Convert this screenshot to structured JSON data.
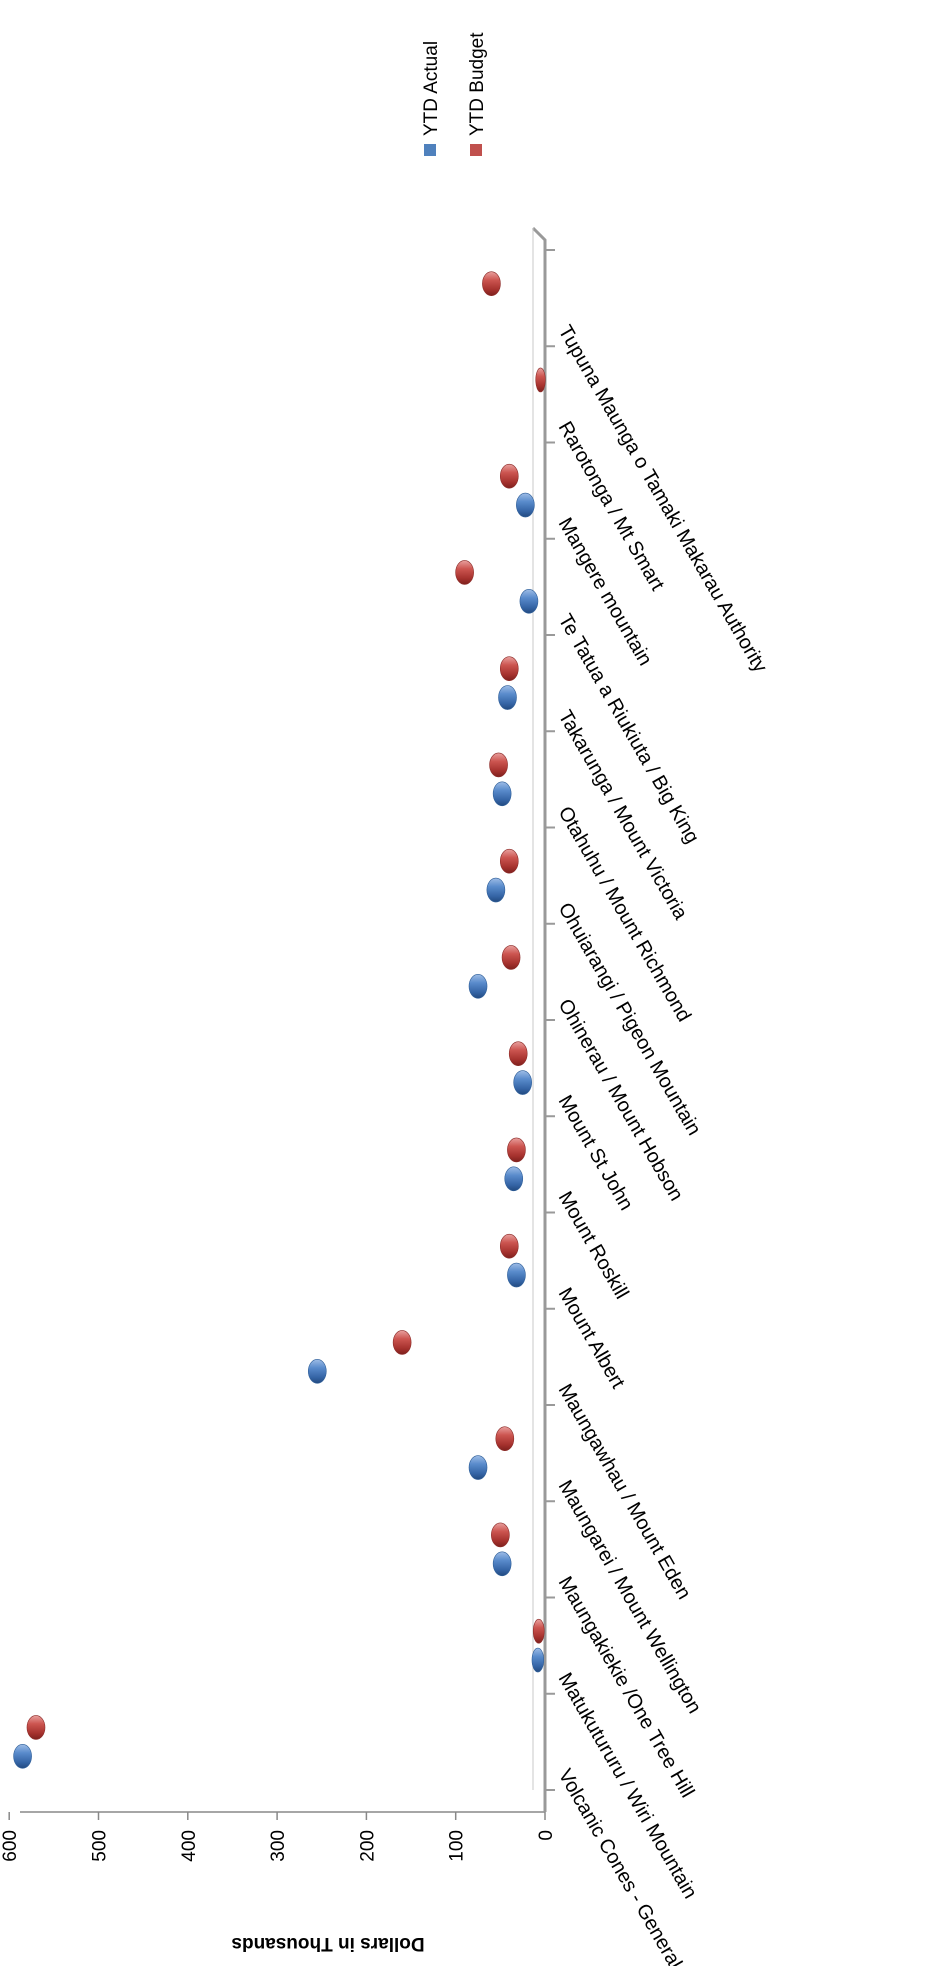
{
  "chart_data": {
    "type": "bar",
    "orientation": "horizontal",
    "categories": [
      "Volcanic Cones - General",
      "Matukutururu / Wiri Mountain",
      "Maungakiekie /One Tree Hill",
      "Maungarei / Mount Wellington",
      "Maungawhau / Mount Eden",
      "Mount Albert",
      "Mount Roskill",
      "Mount St John",
      "Ohinerau / Mount Hobson",
      "Ohuiarangi / Pigeon Mountain",
      "Otahuhu / Mount Richmond",
      "Takarunga / Mount Victoria",
      "Te Tatua a Riukiuta / Big King",
      "Mangere mountain",
      "Rarotonga / Mt Smart",
      "Tupuna Maunga o Tamaki Makarau Authority"
    ],
    "series": [
      {
        "name": "YTD Actual",
        "color": "#4f81bd",
        "values": [
          585,
          8,
          48,
          75,
          255,
          32,
          35,
          25,
          75,
          55,
          48,
          42,
          18,
          22,
          0,
          0
        ]
      },
      {
        "name": "YTD Budget",
        "color": "#c0504d",
        "values": [
          570,
          7,
          50,
          45,
          160,
          40,
          32,
          30,
          38,
          40,
          52,
          40,
          90,
          40,
          5,
          60
        ]
      }
    ],
    "xlabel": "",
    "ylabel": "Dollars in Thousands",
    "ylim": [
      0,
      600
    ],
    "ticks": [
      "0",
      "100",
      "200",
      "300",
      "400",
      "500",
      "600"
    ],
    "legend_position": "top-right",
    "grid": false,
    "style": "3d-cylinder"
  }
}
